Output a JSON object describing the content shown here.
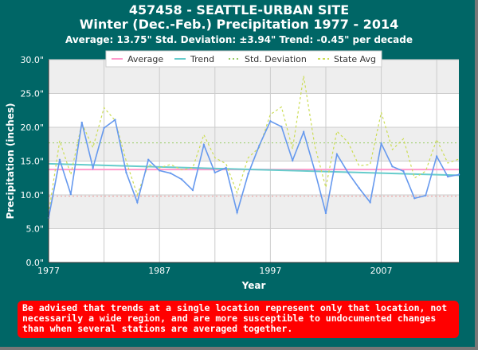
{
  "chart_data": {
    "type": "line",
    "title": "457458 - SEATTLE-URBAN SITE",
    "subtitle": "Winter (Dec.-Feb.) Precipitation 1977 - 2014",
    "stats_line": "Average: 13.75\" Std. Deviation: ±3.94\" Trend: -0.45\" per decade",
    "xlabel": "Year",
    "ylabel": "Precipitation (inches)",
    "xlim": [
      1977,
      2014
    ],
    "ylim": [
      0,
      30
    ],
    "x_ticks": [
      "1977",
      "1987",
      "1997",
      "2007"
    ],
    "y_ticks": [
      "0.0\"",
      "5.0\"",
      "10.0\"",
      "15.0\"",
      "20.0\"",
      "25.0\"",
      "30.0\""
    ],
    "legend": [
      "Average",
      "Trend",
      "Std. Deviation",
      "State Avg"
    ],
    "colors": {
      "average": "#ff99cc",
      "trend": "#66cccc",
      "std_dev": "#99cc66",
      "state_avg": "#ccdd55",
      "station": "#6699ee"
    },
    "average": 13.75,
    "std_deviation": 3.94,
    "trend": {
      "start": 14.6,
      "end": 12.9
    },
    "series": [
      {
        "name": "Station",
        "x": [
          1977,
          1978,
          1979,
          1980,
          1981,
          1982,
          1983,
          1984,
          1985,
          1986,
          1987,
          1988,
          1989,
          1990,
          1991,
          1992,
          1993,
          1994,
          1995,
          1996,
          1997,
          1998,
          1999,
          2000,
          2001,
          2002,
          2003,
          2004,
          2005,
          2006,
          2007,
          2008,
          2009,
          2010,
          2011,
          2012,
          2013,
          2014
        ],
        "values": [
          6.6,
          15.2,
          10.1,
          20.7,
          14.0,
          19.9,
          21.1,
          13.3,
          8.9,
          15.2,
          13.6,
          13.2,
          12.3,
          10.7,
          17.4,
          13.3,
          14.0,
          7.4,
          13.1,
          17.3,
          20.9,
          20.1,
          15.1,
          19.3,
          13.6,
          7.3,
          16.0,
          13.3,
          11.0,
          8.9,
          17.6,
          14.2,
          13.5,
          9.5,
          9.9,
          15.7,
          12.7,
          13.0
        ]
      },
      {
        "name": "State Avg",
        "x": [
          1977,
          1978,
          1979,
          1980,
          1981,
          1982,
          1983,
          1984,
          1985,
          1986,
          1987,
          1988,
          1989,
          1990,
          1991,
          1992,
          1993,
          1994,
          1995,
          1996,
          1997,
          1998,
          1999,
          2000,
          2001,
          2002,
          2003,
          2004,
          2005,
          2006,
          2007,
          2008,
          2009,
          2010,
          2011,
          2012,
          2013,
          2014
        ],
        "values": [
          7.2,
          18.0,
          13.0,
          20.6,
          17.0,
          22.9,
          21.0,
          15.0,
          10.0,
          14.5,
          14.0,
          14.5,
          13.7,
          14.0,
          18.9,
          15.5,
          14.6,
          10.3,
          15.5,
          17.0,
          21.9,
          23.0,
          16.8,
          27.6,
          17.3,
          11.1,
          19.4,
          17.8,
          14.3,
          14.5,
          22.2,
          16.7,
          18.3,
          12.5,
          13.5,
          18.2,
          14.7,
          15.3
        ]
      }
    ]
  },
  "warning_text": "Be advised that trends at a single location represent only that location, not necessarily a wide region, and are more susceptible to undocumented changes than when several stations are averaged together."
}
